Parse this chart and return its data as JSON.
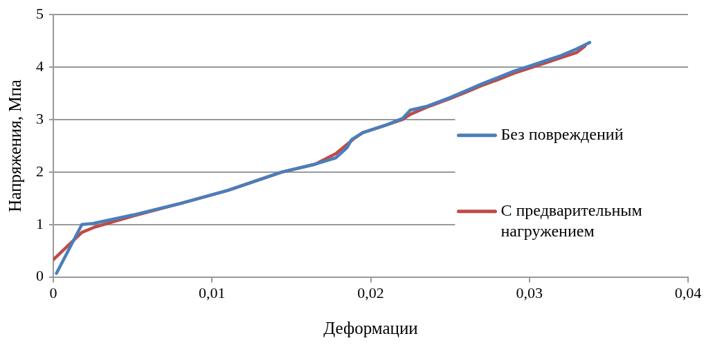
{
  "chart_data": {
    "type": "line",
    "xlabel": "Деформации",
    "ylabel": "Напряжения, Мпа",
    "xlim": [
      0,
      0.04
    ],
    "xticks": [
      {
        "value": 0,
        "label": "0"
      },
      {
        "value": 0.01,
        "label": "0,01"
      },
      {
        "value": 0.02,
        "label": "0,02"
      },
      {
        "value": 0.03,
        "label": "0,03"
      },
      {
        "value": 0.04,
        "label": "0,04"
      }
    ],
    "ylim": [
      0,
      5
    ],
    "yticks": [
      0,
      1,
      2,
      3,
      4,
      5
    ],
    "grid": "y",
    "legend": "right",
    "marker": "none",
    "line_style": "solid",
    "series": [
      {
        "name": "Без повреждений",
        "color": "#4a7ebb",
        "x": [
          0.0002,
          0.0018,
          0.0025,
          0.005,
          0.008,
          0.011,
          0.0144,
          0.0165,
          0.0178,
          0.0185,
          0.0188,
          0.0195,
          0.021,
          0.022,
          0.0225,
          0.0235,
          0.025,
          0.026,
          0.027,
          0.028,
          0.029,
          0.03,
          0.031,
          0.032,
          0.033,
          0.0338
        ],
        "values": [
          0.07,
          1.0,
          1.02,
          1.18,
          1.4,
          1.65,
          2.0,
          2.15,
          2.27,
          2.46,
          2.62,
          2.75,
          2.9,
          3.02,
          3.18,
          3.25,
          3.42,
          3.55,
          3.68,
          3.8,
          3.92,
          4.02,
          4.12,
          4.22,
          4.35,
          4.47
        ]
      },
      {
        "name": "С предварительным нагружением",
        "color": "#be4b48",
        "x": [
          0,
          0.0018,
          0.0026,
          0.005,
          0.008,
          0.011,
          0.0144,
          0.0165,
          0.0178,
          0.019,
          0.0195,
          0.021,
          0.022,
          0.0225,
          0.0235,
          0.025,
          0.026,
          0.027,
          0.028,
          0.029,
          0.03,
          0.031,
          0.032,
          0.033,
          0.0335
        ],
        "values": [
          0.33,
          0.85,
          0.95,
          1.16,
          1.4,
          1.65,
          2.0,
          2.15,
          2.35,
          2.65,
          2.75,
          2.9,
          3.0,
          3.1,
          3.23,
          3.4,
          3.52,
          3.65,
          3.76,
          3.88,
          3.98,
          4.08,
          4.18,
          4.28,
          4.4
        ]
      }
    ]
  }
}
